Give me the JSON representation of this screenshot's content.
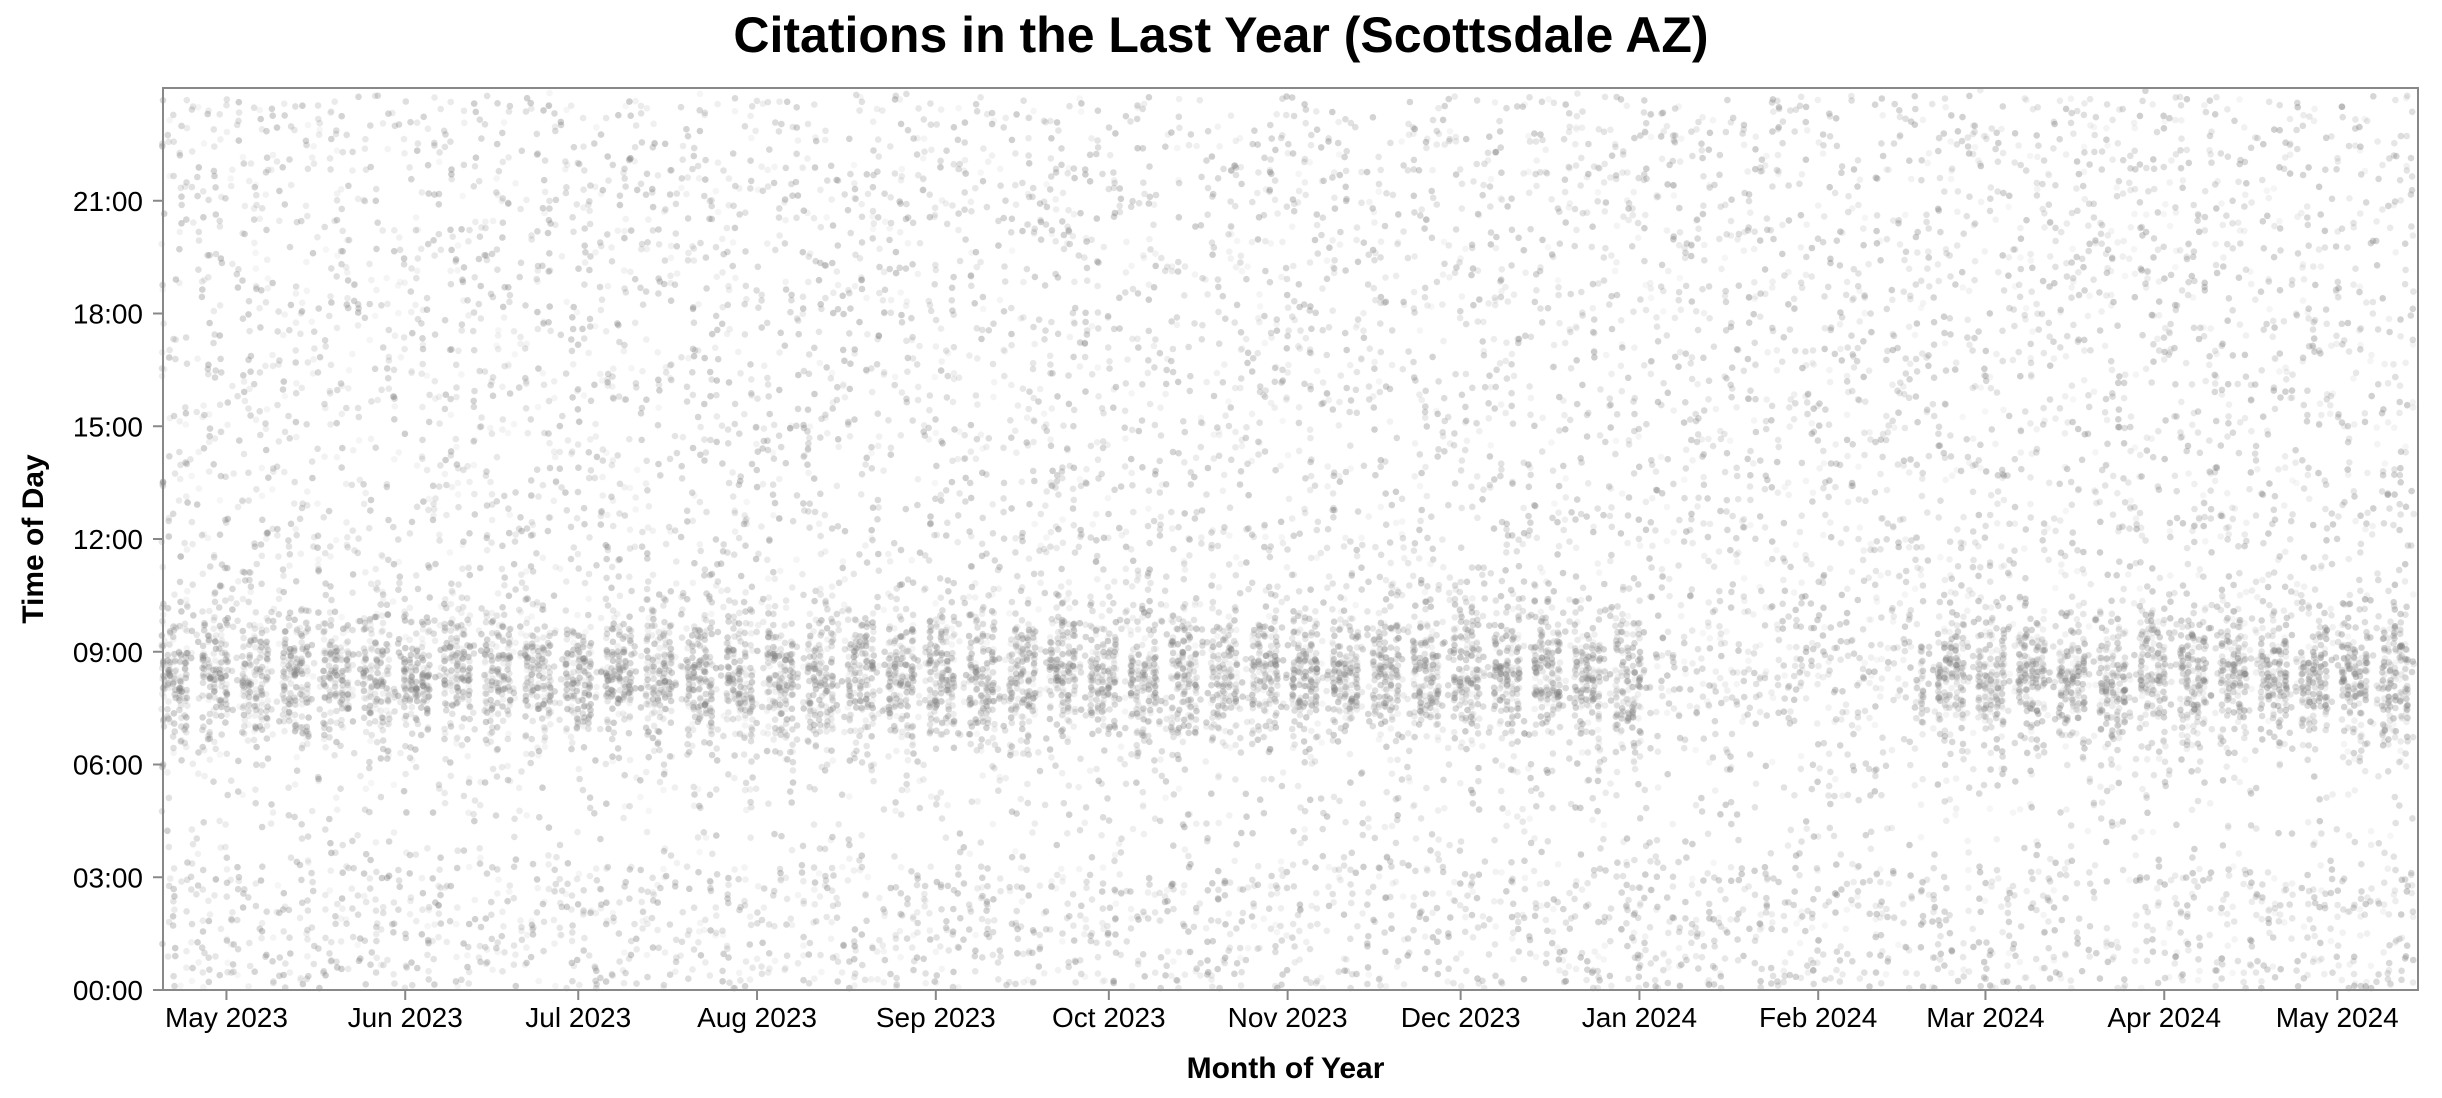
{
  "chart_data": {
    "type": "scatter",
    "title": "Citations in the Last Year (Scottsdale AZ)",
    "xlabel": "Month of Year",
    "ylabel": "Time of Day",
    "xlim": [
      "2023-04-20",
      "2024-05-15"
    ],
    "ylim": [
      "00:00",
      "24:00"
    ],
    "x_ticks": [
      {
        "date": "2023-05-01",
        "label": "May 2023"
      },
      {
        "date": "2023-06-01",
        "label": "Jun 2023"
      },
      {
        "date": "2023-07-01",
        "label": "Jul 2023"
      },
      {
        "date": "2023-08-01",
        "label": "Aug 2023"
      },
      {
        "date": "2023-09-01",
        "label": "Sep 2023"
      },
      {
        "date": "2023-10-01",
        "label": "Oct 2023"
      },
      {
        "date": "2023-11-01",
        "label": "Nov 2023"
      },
      {
        "date": "2023-12-01",
        "label": "Dec 2023"
      },
      {
        "date": "2024-01-01",
        "label": "Jan 2024"
      },
      {
        "date": "2024-02-01",
        "label": "Feb 2024"
      },
      {
        "date": "2024-03-01",
        "label": "Mar 2024"
      },
      {
        "date": "2024-04-01",
        "label": "Apr 2024"
      },
      {
        "date": "2024-05-01",
        "label": "May 2024"
      }
    ],
    "y_ticks": [
      {
        "value": 0,
        "label": "00:00"
      },
      {
        "value": 3,
        "label": "03:00"
      },
      {
        "value": 6,
        "label": "06:00"
      },
      {
        "value": 9,
        "label": "09:00"
      },
      {
        "value": 12,
        "label": "12:00"
      },
      {
        "value": 15,
        "label": "15:00"
      },
      {
        "value": 18,
        "label": "18:00"
      },
      {
        "value": 21,
        "label": "21:00"
      }
    ],
    "grid": false,
    "colors": {
      "point": "#808080",
      "axis": "#888888"
    }
  }
}
